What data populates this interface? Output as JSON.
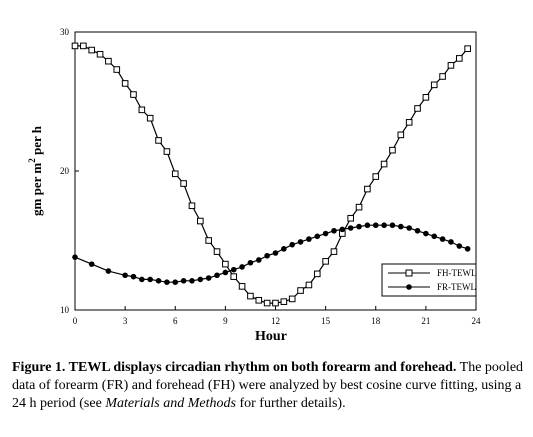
{
  "chart_data": {
    "type": "line",
    "xlabel": "Hour",
    "ylabel": "gm per m 2 per h",
    "ylabel_parts": {
      "before": "gm per m",
      "sup": "2",
      "after": " per h"
    },
    "xlim": [
      0,
      24
    ],
    "ylim": [
      10,
      30
    ],
    "xticks": [
      "0",
      "3",
      "6",
      "9",
      "12",
      "15",
      "18",
      "21",
      "24"
    ],
    "yticks": [
      "10",
      "20",
      "30"
    ],
    "grid": false,
    "legend_position": "lower-right",
    "series": [
      {
        "name": "FH-TEWL",
        "marker": "open-square",
        "x": [
          0.0,
          0.5,
          1.0,
          1.5,
          2.0,
          2.5,
          3.0,
          3.5,
          4.0,
          4.5,
          5.0,
          5.5,
          6.0,
          6.5,
          7.0,
          7.5,
          8.0,
          8.5,
          9.0,
          9.5,
          10.0,
          10.5,
          11.0,
          11.5,
          12.0,
          12.5,
          13.0,
          13.5,
          14.0,
          14.5,
          15.0,
          15.5,
          16.0,
          16.5,
          17.0,
          17.5,
          18.0,
          18.5,
          19.0,
          19.5,
          20.0,
          20.5,
          21.0,
          21.5,
          22.0,
          22.5,
          23.0,
          23.5
        ],
        "y": [
          29.0,
          29.0,
          28.7,
          28.4,
          27.9,
          27.3,
          26.3,
          25.5,
          24.4,
          23.8,
          22.2,
          21.4,
          19.8,
          19.1,
          17.5,
          16.4,
          15.0,
          14.2,
          13.3,
          12.4,
          11.7,
          11.0,
          10.7,
          10.5,
          10.5,
          10.6,
          10.8,
          11.4,
          11.8,
          12.6,
          13.5,
          14.2,
          15.5,
          16.6,
          17.4,
          18.7,
          19.6,
          20.5,
          21.5,
          22.6,
          23.5,
          24.5,
          25.3,
          26.2,
          26.8,
          27.6,
          28.1,
          28.8
        ]
      },
      {
        "name": "FR-TEWL",
        "marker": "filled-circle",
        "x": [
          0.0,
          1.0,
          2.0,
          3.0,
          3.5,
          4.0,
          4.5,
          5.0,
          5.5,
          6.0,
          6.5,
          7.0,
          7.5,
          8.0,
          8.5,
          9.0,
          9.5,
          10.0,
          10.5,
          11.0,
          11.5,
          12.0,
          12.5,
          13.0,
          13.5,
          14.0,
          14.5,
          15.0,
          15.5,
          16.0,
          16.5,
          17.0,
          17.5,
          18.0,
          18.5,
          19.0,
          19.5,
          20.0,
          20.5,
          21.0,
          21.5,
          22.0,
          22.5,
          23.0,
          23.5
        ],
        "y": [
          13.8,
          13.3,
          12.8,
          12.5,
          12.4,
          12.2,
          12.2,
          12.1,
          12.0,
          12.0,
          12.1,
          12.1,
          12.2,
          12.3,
          12.5,
          12.7,
          12.9,
          13.1,
          13.4,
          13.6,
          13.9,
          14.1,
          14.4,
          14.7,
          14.9,
          15.1,
          15.3,
          15.5,
          15.7,
          15.8,
          15.9,
          16.0,
          16.1,
          16.1,
          16.1,
          16.1,
          16.0,
          15.9,
          15.7,
          15.5,
          15.3,
          15.1,
          14.9,
          14.6,
          14.4
        ]
      }
    ]
  },
  "caption": {
    "bold": "Figure 1. TEWL displays circadian rhythm on both forearm and forehead.",
    "text_before_italic": " The pooled data of forearm (FR) and forehead (FH) were analyzed by best cosine curve fitting, using a 24 h period (see ",
    "italic": "Materials and Methods",
    "text_after_italic": " for further details)."
  }
}
